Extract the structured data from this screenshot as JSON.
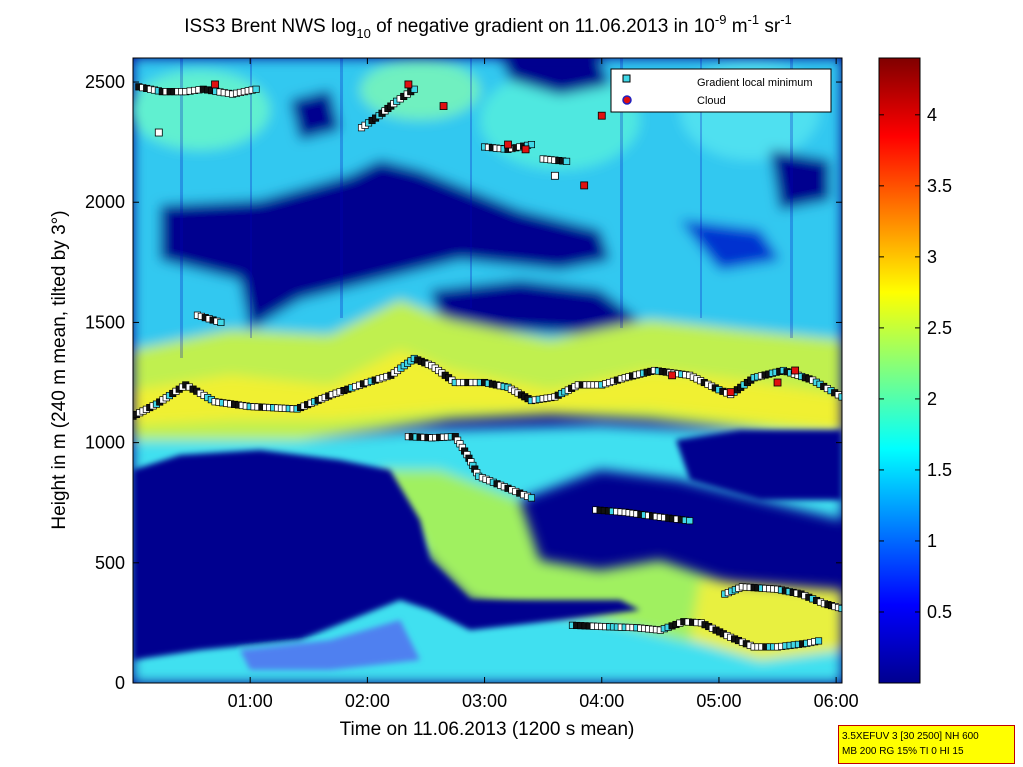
{
  "chart_data": {
    "type": "heatmap",
    "title": {
      "prefix": "ISS3 Brent NWS log",
      "prefix_sub": "10",
      "middle": " of negative gradient on 11.06.2013 in 10",
      "exp1": "-9",
      "unit1": " m",
      "exp2": "-1",
      "unit2": " sr",
      "exp3": "-1"
    },
    "xlabel": "Time on 11.06.2013 (1200 s mean)",
    "ylabel": "Height in m (240 m mean, tilted by 3°)",
    "x_ticks": [
      "01:00",
      "02:00",
      "03:00",
      "04:00",
      "05:00",
      "06:00"
    ],
    "x_tick_hours": [
      1,
      2,
      3,
      4,
      5,
      6
    ],
    "xlim_hours": [
      0,
      6.05
    ],
    "y_ticks": [
      "0",
      "500",
      "1000",
      "1500",
      "2000",
      "2500"
    ],
    "y_tick_values": [
      0,
      500,
      1000,
      1500,
      2000,
      2500
    ],
    "ylim": [
      0,
      2600
    ],
    "colorbar": {
      "ticks": [
        "0.5",
        "1",
        "1.5",
        "2",
        "2.5",
        "3",
        "3.5",
        "4"
      ],
      "tick_values": [
        0.5,
        1,
        1.5,
        2,
        2.5,
        3,
        3.5,
        4
      ],
      "range": [
        0,
        4.4
      ]
    },
    "legend": {
      "placement": "top-right",
      "entries": [
        {
          "label": "Gradient local minimum",
          "color": "#40d8e8"
        },
        {
          "label": "Cloud",
          "color": "#e01010"
        }
      ]
    },
    "series": [
      {
        "kind": "gradient-minimum",
        "points": [
          [
            0.0,
            1110
          ],
          [
            0.2,
            1160
          ],
          [
            0.45,
            1240
          ],
          [
            0.7,
            1170
          ],
          [
            1.0,
            1150
          ],
          [
            1.4,
            1140
          ],
          [
            1.7,
            1200
          ],
          [
            2.0,
            1250
          ],
          [
            2.2,
            1280
          ],
          [
            2.4,
            1350
          ],
          [
            2.55,
            1320
          ],
          [
            2.75,
            1250
          ],
          [
            3.0,
            1250
          ],
          [
            3.2,
            1230
          ],
          [
            3.4,
            1175
          ],
          [
            3.6,
            1190
          ],
          [
            3.8,
            1240
          ],
          [
            4.0,
            1240
          ],
          [
            4.2,
            1270
          ],
          [
            4.45,
            1300
          ],
          [
            4.75,
            1280
          ],
          [
            5.0,
            1220
          ],
          [
            5.1,
            1200
          ],
          [
            5.3,
            1270
          ],
          [
            5.55,
            1300
          ],
          [
            5.8,
            1260
          ],
          [
            6.05,
            1190
          ]
        ]
      },
      {
        "kind": "gradient-minimum",
        "points": [
          [
            2.35,
            1025
          ],
          [
            2.55,
            1020
          ],
          [
            2.75,
            1025
          ],
          [
            2.85,
            950
          ],
          [
            2.95,
            860
          ],
          [
            3.2,
            810
          ],
          [
            3.4,
            770
          ]
        ]
      },
      {
        "kind": "gradient-minimum",
        "points": [
          [
            3.95,
            720
          ],
          [
            4.2,
            710
          ],
          [
            4.5,
            690
          ],
          [
            4.75,
            675
          ]
        ]
      },
      {
        "kind": "gradient-minimum",
        "points": [
          [
            5.05,
            370
          ],
          [
            5.2,
            400
          ],
          [
            5.5,
            390
          ],
          [
            5.7,
            370
          ],
          [
            5.9,
            330
          ],
          [
            6.05,
            310
          ]
        ]
      },
      {
        "kind": "gradient-minimum",
        "points": [
          [
            3.75,
            240
          ],
          [
            4.0,
            235
          ],
          [
            4.3,
            230
          ],
          [
            4.5,
            220
          ],
          [
            4.7,
            255
          ],
          [
            4.85,
            250
          ],
          [
            5.1,
            190
          ],
          [
            5.3,
            150
          ],
          [
            5.5,
            150
          ],
          [
            5.75,
            165
          ],
          [
            5.85,
            175
          ]
        ]
      },
      {
        "kind": "gradient-minimum",
        "points": [
          [
            0.05,
            2480
          ],
          [
            0.25,
            2460
          ],
          [
            0.45,
            2460
          ],
          [
            0.6,
            2470
          ],
          [
            0.85,
            2450
          ],
          [
            1.05,
            2470
          ]
        ]
      },
      {
        "kind": "gradient-minimum",
        "points": [
          [
            1.95,
            2310
          ],
          [
            2.1,
            2360
          ],
          [
            2.25,
            2420
          ],
          [
            2.4,
            2470
          ]
        ]
      },
      {
        "kind": "gradient-minimum",
        "points": [
          [
            3.0,
            2230
          ],
          [
            3.2,
            2220
          ],
          [
            3.4,
            2240
          ]
        ]
      },
      {
        "kind": "gradient-minimum",
        "points": [
          [
            3.5,
            2180
          ],
          [
            3.7,
            2170
          ]
        ]
      },
      {
        "kind": "gradient-minimum",
        "points": [
          [
            0.55,
            1530
          ],
          [
            0.75,
            1500
          ]
        ]
      },
      {
        "kind": "gradient-minimum",
        "points": [
          [
            0.22,
            2290
          ]
        ]
      },
      {
        "kind": "gradient-minimum",
        "points": [
          [
            3.6,
            2110
          ]
        ]
      },
      {
        "kind": "cloud",
        "points": [
          [
            0.7,
            2490
          ],
          [
            2.35,
            2490
          ],
          [
            2.65,
            2400
          ],
          [
            3.2,
            2240
          ],
          [
            3.35,
            2220
          ],
          [
            3.85,
            2070
          ],
          [
            4.0,
            2360
          ],
          [
            4.6,
            1280
          ],
          [
            5.1,
            1210
          ],
          [
            5.5,
            1250
          ],
          [
            5.65,
            1300
          ]
        ]
      }
    ]
  },
  "info_box": {
    "line1": "3.5XEFUV 3 [30 2500] NH 600",
    "line2": "MB 200 RG 15% TI 0 HI 15"
  }
}
